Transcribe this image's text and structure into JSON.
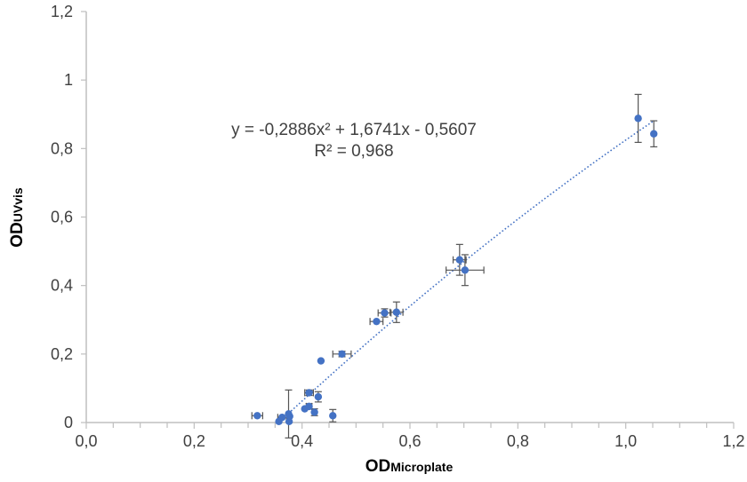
{
  "chart_data": {
    "type": "scatter",
    "title": "",
    "xlabel": {
      "main": "OD",
      "sub": "Microplate"
    },
    "ylabel": {
      "main": "OD",
      "sub": "UVvis"
    },
    "xlim": [
      0,
      1.2
    ],
    "ylim": [
      0,
      1.2
    ],
    "x_ticks": [
      "0,0",
      "0,2",
      "0,4",
      "0,6",
      "0,8",
      "1,0",
      "1,2"
    ],
    "y_ticks": [
      "0",
      "0,2",
      "0,4",
      "0,6",
      "0,8",
      "1",
      "1,2"
    ],
    "grid": false,
    "legend": "none",
    "marker_color": "#4472C4",
    "trendline": {
      "type": "polynomial",
      "coefficients": [
        -0.2886,
        1.6741,
        -0.5607
      ],
      "x_range": [
        0.37,
        1.05
      ],
      "color": "#4472C4",
      "style": "dotted",
      "equation_line1": "y = -0,2886x² + 1,6741x - 0,5607",
      "equation_line2": "R² = 0,968"
    },
    "points": [
      {
        "x": 0.317,
        "y": 0.02,
        "xerr": 0.01,
        "yerr": 0.0
      },
      {
        "x": 0.357,
        "y": 0.003,
        "xerr": 0.0,
        "yerr": 0.0
      },
      {
        "x": 0.363,
        "y": 0.015,
        "xerr": 0.008,
        "yerr": 0.0
      },
      {
        "x": 0.375,
        "y": 0.025,
        "xerr": 0.0,
        "yerr": 0.07
      },
      {
        "x": 0.377,
        "y": 0.018,
        "xerr": 0.0,
        "yerr": 0.0
      },
      {
        "x": 0.376,
        "y": 0.003,
        "xerr": 0.0,
        "yerr": 0.0
      },
      {
        "x": 0.405,
        "y": 0.04,
        "xerr": 0.0,
        "yerr": 0.0
      },
      {
        "x": 0.413,
        "y": 0.087,
        "xerr": 0.008,
        "yerr": 0.008
      },
      {
        "x": 0.413,
        "y": 0.047,
        "xerr": 0.005,
        "yerr": 0.008
      },
      {
        "x": 0.423,
        "y": 0.03,
        "xerr": 0.0,
        "yerr": 0.01
      },
      {
        "x": 0.43,
        "y": 0.075,
        "xerr": 0.0,
        "yerr": 0.015
      },
      {
        "x": 0.435,
        "y": 0.18,
        "xerr": 0.0,
        "yerr": 0.0
      },
      {
        "x": 0.457,
        "y": 0.02,
        "xerr": 0.0,
        "yerr": 0.018
      },
      {
        "x": 0.474,
        "y": 0.2,
        "xerr": 0.017,
        "yerr": 0.008
      },
      {
        "x": 0.538,
        "y": 0.295,
        "xerr": 0.012,
        "yerr": 0.0
      },
      {
        "x": 0.553,
        "y": 0.32,
        "xerr": 0.012,
        "yerr": 0.012
      },
      {
        "x": 0.575,
        "y": 0.322,
        "xerr": 0.012,
        "yerr": 0.03
      },
      {
        "x": 0.692,
        "y": 0.475,
        "xerr": 0.012,
        "yerr": 0.045
      },
      {
        "x": 0.702,
        "y": 0.445,
        "xerr": 0.035,
        "yerr": 0.045
      },
      {
        "x": 1.023,
        "y": 0.888,
        "xerr": 0.0,
        "yerr": 0.07
      },
      {
        "x": 1.052,
        "y": 0.843,
        "xerr": 0.0,
        "yerr": 0.038
      }
    ]
  }
}
